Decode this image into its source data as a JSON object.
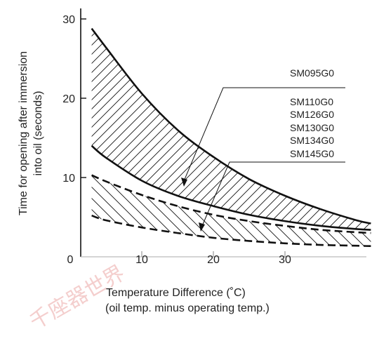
{
  "chart_data": {
    "type": "line",
    "xlabel": [
      "Temperature Difference (˚C)",
      "(oil temp. minus operating temp.)"
    ],
    "ylabel": [
      "Time for opening after immersion",
      "into oil (seconds)"
    ],
    "xlim": [
      0,
      42
    ],
    "ylim": [
      0,
      31
    ],
    "x_ticks": [
      0,
      10,
      20,
      30
    ],
    "y_ticks": [
      10,
      20,
      30
    ],
    "grid": false,
    "series": [
      {
        "name": "SM095G0",
        "style": "solid",
        "band": "upper",
        "upper": {
          "x": [
            3,
            5,
            10,
            15,
            20,
            25,
            30,
            35,
            40,
            42
          ],
          "y": [
            28.8,
            26.4,
            20.6,
            16.0,
            12.6,
            9.8,
            7.7,
            6.0,
            4.6,
            4.2
          ]
        },
        "lower": {
          "x": [
            3,
            5,
            10,
            15,
            20,
            25,
            30,
            35,
            40,
            42
          ],
          "y": [
            14.0,
            12.5,
            9.6,
            7.7,
            6.4,
            5.3,
            4.5,
            3.9,
            3.5,
            3.4
          ]
        }
      },
      {
        "name": "SM110G0 SM126G0 SM130G0 SM134G0 SM145G0",
        "style": "dashed",
        "band": "lower",
        "upper": {
          "x": [
            3,
            5,
            10,
            15,
            20,
            25,
            30,
            35,
            40,
            42
          ],
          "y": [
            10.3,
            9.5,
            7.8,
            6.4,
            5.3,
            4.5,
            3.9,
            3.4,
            3.1,
            3.0
          ]
        },
        "lower": {
          "x": [
            3,
            5,
            10,
            15,
            20,
            25,
            30,
            35,
            40,
            42
          ],
          "y": [
            5.2,
            4.6,
            3.7,
            3.0,
            2.4,
            2.0,
            1.7,
            1.5,
            1.4,
            1.35
          ]
        }
      }
    ],
    "legend": {
      "placement": "right",
      "labels": [
        "SM095G0",
        "SM110G0",
        "SM126G0",
        "SM130G0",
        "SM134G0",
        "SM145G0"
      ]
    }
  },
  "watermark": "千座器世界",
  "colors": {
    "line": "#111111",
    "watermark": "#d9534f"
  }
}
